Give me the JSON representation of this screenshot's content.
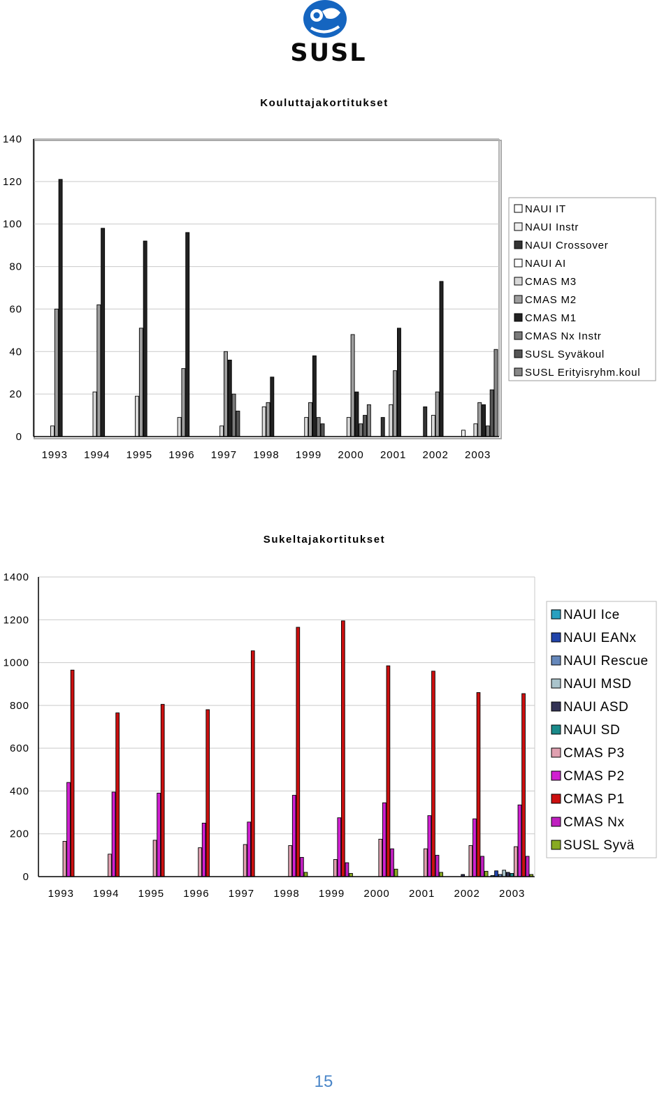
{
  "logo": {
    "text": "SUSL",
    "icon": "susl-diver-logo",
    "color": "#1565c0"
  },
  "page_number": "15",
  "chart_data": [
    {
      "type": "bar",
      "title": "Kouluttajakortitukset",
      "categories": [
        "1993",
        "1994",
        "1995",
        "1996",
        "1997",
        "1998",
        "1999",
        "2000",
        "2001",
        "2002",
        "2003"
      ],
      "ylim": [
        0,
        140
      ],
      "yticks": [
        "0",
        "20",
        "40",
        "60",
        "80",
        "100",
        "120",
        "140"
      ],
      "grid": true,
      "legend_position": "right",
      "series": [
        {
          "name": "NAUI IT",
          "color": "#ffffff",
          "values": [
            0,
            0,
            0,
            0,
            0,
            0,
            0,
            0,
            0,
            0,
            0
          ]
        },
        {
          "name": "NAUI Instr",
          "color": "#eeeeee",
          "values": [
            0,
            0,
            0,
            0,
            0,
            0,
            0,
            0,
            0,
            0,
            3
          ]
        },
        {
          "name": "NAUI Crossover",
          "color": "#333333",
          "values": [
            0,
            0,
            0,
            0,
            0,
            0,
            0,
            0,
            9,
            14,
            0
          ]
        },
        {
          "name": "NAUI AI",
          "color": "#ffffff",
          "values": [
            0,
            0,
            0,
            0,
            0,
            0,
            0,
            0,
            0,
            0,
            0
          ]
        },
        {
          "name": "CMAS M3",
          "color": "#d8d8d8",
          "values": [
            5,
            21,
            19,
            9,
            5,
            14,
            9,
            9,
            15,
            10,
            6
          ]
        },
        {
          "name": "CMAS M2",
          "color": "#9e9e9e",
          "values": [
            60,
            62,
            51,
            32,
            40,
            16,
            16,
            48,
            31,
            21,
            16
          ]
        },
        {
          "name": "CMAS M1",
          "color": "#222222",
          "values": [
            121,
            98,
            92,
            96,
            36,
            28,
            38,
            21,
            51,
            73,
            15
          ]
        },
        {
          "name": "CMAS Nx Instr",
          "color": "#7a7a7a",
          "values": [
            0,
            0,
            0,
            0,
            20,
            0,
            9,
            6,
            0,
            0,
            5
          ]
        },
        {
          "name": "SUSL Syväkoul",
          "color": "#555555",
          "values": [
            0,
            0,
            0,
            0,
            12,
            0,
            6,
            10,
            0,
            0,
            22
          ]
        },
        {
          "name": "SUSL Erityisryhm.koul",
          "color": "#888888",
          "values": [
            0,
            0,
            0,
            0,
            0,
            0,
            0,
            15,
            0,
            0,
            41
          ]
        }
      ]
    },
    {
      "type": "bar",
      "title": "Sukeltajakortitukset",
      "categories": [
        "1993",
        "1994",
        "1995",
        "1996",
        "1997",
        "1998",
        "1999",
        "2000",
        "2001",
        "2002",
        "2003"
      ],
      "ylim": [
        0,
        1400
      ],
      "yticks": [
        "0",
        "200",
        "400",
        "600",
        "800",
        "1000",
        "1200",
        "1400"
      ],
      "grid": true,
      "legend_position": "right",
      "series": [
        {
          "name": "NAUI Ice",
          "color": "#2aa0c0",
          "values": [
            0,
            0,
            0,
            0,
            0,
            0,
            0,
            0,
            0,
            0,
            5
          ]
        },
        {
          "name": "NAUI EANx",
          "color": "#2244aa",
          "values": [
            0,
            0,
            0,
            0,
            0,
            0,
            0,
            0,
            0,
            0,
            27
          ]
        },
        {
          "name": "NAUI Rescue",
          "color": "#6688bb",
          "values": [
            0,
            0,
            0,
            0,
            0,
            0,
            0,
            0,
            0,
            0,
            10
          ]
        },
        {
          "name": "NAUI MSD",
          "color": "#aac4cc",
          "values": [
            0,
            0,
            0,
            0,
            0,
            0,
            0,
            0,
            0,
            0,
            30
          ]
        },
        {
          "name": "NAUI ASD",
          "color": "#333355",
          "values": [
            0,
            0,
            0,
            0,
            0,
            0,
            0,
            0,
            0,
            10,
            20
          ]
        },
        {
          "name": "NAUI SD",
          "color": "#1a8a8a",
          "values": [
            0,
            0,
            0,
            0,
            0,
            0,
            0,
            0,
            0,
            0,
            15
          ]
        },
        {
          "name": "CMAS P3",
          "color": "#e0a0b0",
          "values": [
            165,
            105,
            170,
            135,
            150,
            145,
            80,
            175,
            130,
            145,
            140
          ]
        },
        {
          "name": "CMAS P2",
          "color": "#d020d0",
          "values": [
            440,
            395,
            390,
            250,
            255,
            380,
            275,
            345,
            285,
            270,
            335
          ]
        },
        {
          "name": "CMAS P1",
          "color": "#cc1010",
          "values": [
            965,
            765,
            805,
            780,
            1055,
            1165,
            1195,
            985,
            960,
            860,
            855
          ]
        },
        {
          "name": "CMAS Nx",
          "color": "#c020c0",
          "values": [
            0,
            0,
            0,
            0,
            0,
            90,
            65,
            130,
            100,
            95,
            95
          ]
        },
        {
          "name": "SUSL Syvä",
          "color": "#88aa22",
          "values": [
            0,
            0,
            0,
            0,
            0,
            20,
            15,
            35,
            20,
            25,
            10
          ]
        }
      ]
    }
  ]
}
